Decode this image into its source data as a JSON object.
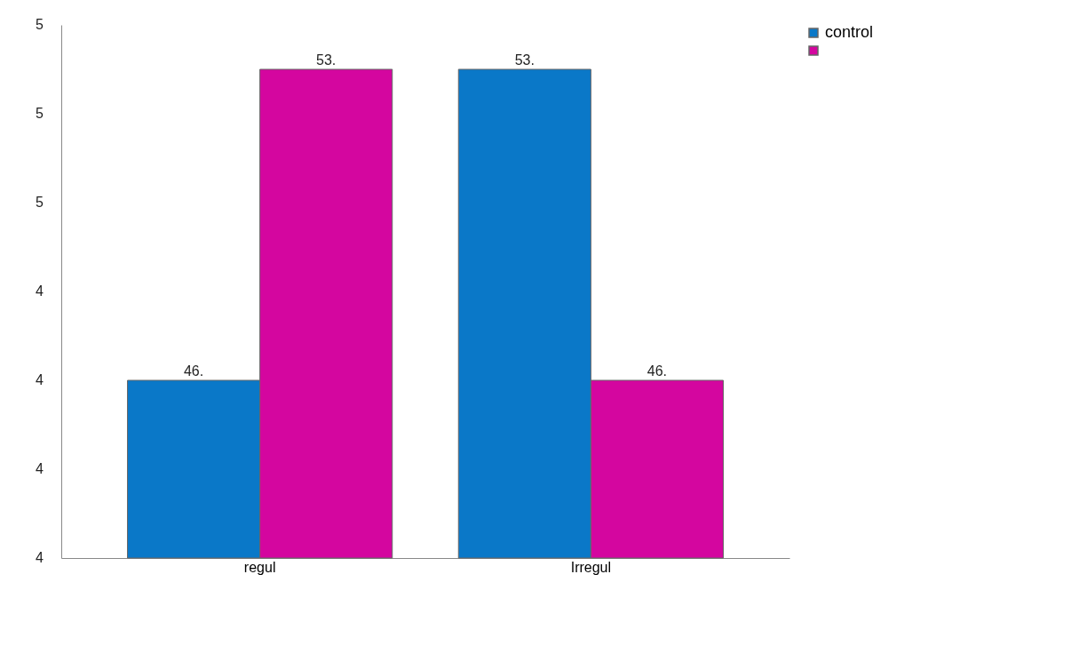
{
  "chart_data": {
    "type": "bar",
    "categories": [
      "regul",
      "Irregul"
    ],
    "ylim": [
      42,
      54
    ],
    "series": [
      {
        "name": "control",
        "color": "#0a78c8",
        "values": [
          46,
          53
        ],
        "value_labels": [
          "46.",
          "53."
        ]
      },
      {
        "color": "#d4069f",
        "values": [
          53,
          46
        ],
        "value_labels": [
          "53.",
          "46."
        ]
      }
    ],
    "annotations": [
      "5",
      "5",
      "5",
      "4",
      "4",
      "4",
      "4"
    ],
    "grid": false,
    "legend": "right"
  }
}
